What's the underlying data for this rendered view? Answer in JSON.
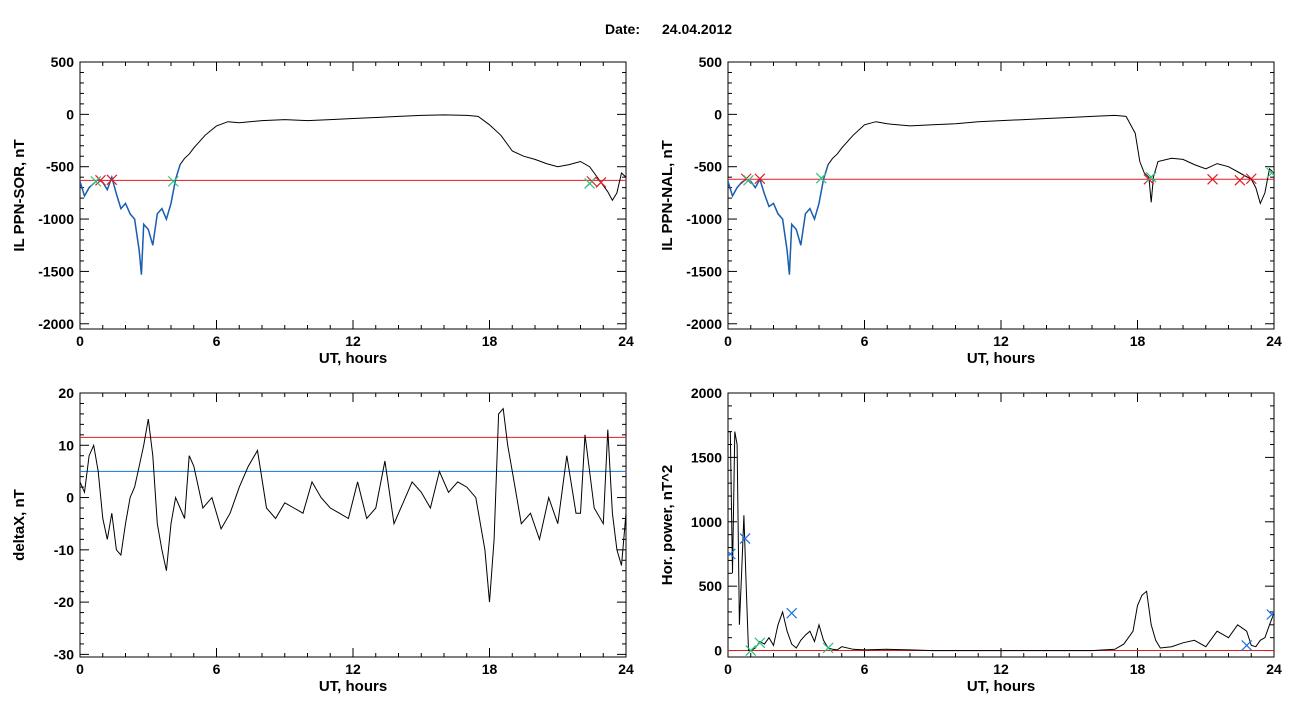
{
  "header": {
    "label": "Date:",
    "value": "24.04.2012"
  },
  "colors": {
    "trace": "#000000",
    "selection": "#1a5fb4",
    "threshold": "#e01b24",
    "blue_line": "#1c71d8",
    "green_mark": "#2ec27e"
  },
  "chart_data": [
    {
      "type": "line",
      "ylabel": "IL PPN-SOR, nT",
      "xlabel": "UT, hours",
      "xlim": [
        0,
        24
      ],
      "ylim": [
        -2050,
        500
      ],
      "xticks": [
        "0",
        "6",
        "12",
        "18",
        "24"
      ],
      "yticks": [
        "500",
        "0",
        "-500",
        "-1000",
        "-1500",
        "-2000"
      ],
      "x": [
        0,
        0.2,
        0.4,
        0.6,
        0.8,
        1.0,
        1.2,
        1.4,
        1.6,
        1.8,
        2.0,
        2.2,
        2.4,
        2.6,
        2.7,
        2.8,
        3.0,
        3.2,
        3.4,
        3.6,
        3.8,
        4.0,
        4.2,
        4.4,
        4.6,
        4.8,
        5.0,
        5.5,
        6.0,
        6.5,
        7.0,
        8.0,
        9.0,
        10.0,
        11.0,
        12.0,
        13.0,
        14.0,
        15.0,
        16.0,
        17.0,
        17.5,
        18.0,
        18.5,
        19.0,
        19.5,
        20.0,
        20.5,
        21.0,
        21.5,
        22.0,
        22.4,
        22.6,
        22.8,
        23.0,
        23.2,
        23.4,
        23.6,
        23.8,
        24.0
      ],
      "y": [
        -640,
        -780,
        -700,
        -660,
        -620,
        -650,
        -720,
        -600,
        -760,
        -900,
        -850,
        -950,
        -1000,
        -1300,
        -1530,
        -1050,
        -1100,
        -1250,
        -950,
        -900,
        -1000,
        -850,
        -620,
        -480,
        -420,
        -380,
        -320,
        -200,
        -110,
        -70,
        -80,
        -60,
        -50,
        -60,
        -50,
        -40,
        -30,
        -20,
        -10,
        -5,
        -10,
        -20,
        -100,
        -200,
        -350,
        -400,
        -430,
        -470,
        -500,
        -480,
        -450,
        -500,
        -560,
        -620,
        -680,
        -740,
        -820,
        -750,
        -560,
        -600
      ],
      "threshold": -630,
      "selection_range": [
        0,
        4.4
      ],
      "markers": [
        {
          "x": 0.9,
          "y": -630,
          "color": "red"
        },
        {
          "x": 1.4,
          "y": -625,
          "color": "red"
        },
        {
          "x": 0.7,
          "y": -640,
          "color": "green"
        },
        {
          "x": 4.1,
          "y": -640,
          "color": "green"
        },
        {
          "x": 22.5,
          "y": -640,
          "color": "red"
        },
        {
          "x": 22.9,
          "y": -650,
          "color": "red"
        },
        {
          "x": 22.4,
          "y": -660,
          "color": "green"
        }
      ]
    },
    {
      "type": "line",
      "ylabel": "IL PPN-NAL, nT",
      "xlabel": "UT, hours",
      "xlim": [
        0,
        24
      ],
      "ylim": [
        -2050,
        500
      ],
      "xticks": [
        "0",
        "6",
        "12",
        "18",
        "24"
      ],
      "yticks": [
        "500",
        "0",
        "-500",
        "-1000",
        "-1500",
        "-2000"
      ],
      "x": [
        0,
        0.2,
        0.4,
        0.6,
        0.8,
        1.0,
        1.2,
        1.4,
        1.6,
        1.8,
        2.0,
        2.2,
        2.4,
        2.6,
        2.7,
        2.8,
        3.0,
        3.2,
        3.4,
        3.6,
        3.8,
        4.0,
        4.2,
        4.4,
        4.6,
        4.8,
        5.0,
        5.5,
        6.0,
        6.5,
        7.0,
        8.0,
        9.0,
        10.0,
        11.0,
        12.0,
        13.0,
        14.0,
        15.0,
        16.0,
        17.0,
        17.5,
        17.9,
        18.1,
        18.3,
        18.5,
        18.6,
        18.7,
        18.9,
        19.5,
        20.0,
        20.5,
        21.0,
        21.5,
        22.0,
        22.5,
        23.0,
        23.2,
        23.4,
        23.6,
        23.8,
        24.0
      ],
      "y": [
        -640,
        -780,
        -700,
        -650,
        -620,
        -640,
        -700,
        -620,
        -760,
        -880,
        -850,
        -950,
        -1000,
        -1300,
        -1530,
        -1050,
        -1100,
        -1250,
        -950,
        -900,
        -1000,
        -850,
        -620,
        -480,
        -420,
        -380,
        -320,
        -200,
        -100,
        -70,
        -90,
        -110,
        -100,
        -90,
        -70,
        -60,
        -50,
        -40,
        -30,
        -20,
        -10,
        -20,
        -180,
        -450,
        -560,
        -600,
        -840,
        -600,
        -450,
        -420,
        -430,
        -480,
        -520,
        -470,
        -500,
        -560,
        -620,
        -700,
        -850,
        -750,
        -520,
        -560
      ],
      "threshold": -620,
      "selection_range": [
        0,
        4.4
      ],
      "markers": [
        {
          "x": 0.8,
          "y": -615,
          "color": "red"
        },
        {
          "x": 1.4,
          "y": -615,
          "color": "red"
        },
        {
          "x": 0.9,
          "y": -630,
          "color": "green"
        },
        {
          "x": 4.1,
          "y": -610,
          "color": "green"
        },
        {
          "x": 18.5,
          "y": -620,
          "color": "red"
        },
        {
          "x": 18.6,
          "y": -600,
          "color": "green"
        },
        {
          "x": 21.3,
          "y": -620,
          "color": "red"
        },
        {
          "x": 22.5,
          "y": -630,
          "color": "red"
        },
        {
          "x": 23.0,
          "y": -615,
          "color": "red"
        },
        {
          "x": 23.9,
          "y": -560,
          "color": "green"
        }
      ]
    },
    {
      "type": "line",
      "ylabel": "deltaX, nT",
      "xlabel": "UT, hours",
      "xlim": [
        0,
        24
      ],
      "ylim": [
        -30.5,
        20
      ],
      "xticks": [
        "0",
        "6",
        "12",
        "18",
        "24"
      ],
      "yticks": [
        "20",
        "10",
        "0",
        "-10",
        "-20",
        "-30"
      ],
      "x": [
        0,
        0.2,
        0.4,
        0.6,
        0.8,
        1.0,
        1.2,
        1.4,
        1.6,
        1.8,
        2.0,
        2.2,
        2.4,
        2.6,
        2.8,
        3.0,
        3.2,
        3.4,
        3.6,
        3.8,
        4.0,
        4.2,
        4.4,
        4.6,
        4.8,
        5.0,
        5.4,
        5.8,
        6.2,
        6.6,
        7.0,
        7.4,
        7.8,
        8.2,
        8.6,
        9.0,
        9.4,
        9.8,
        10.2,
        10.6,
        11.0,
        11.4,
        11.8,
        12.2,
        12.6,
        13.0,
        13.4,
        13.8,
        14.2,
        14.6,
        15.0,
        15.4,
        15.8,
        16.2,
        16.6,
        17.0,
        17.4,
        17.8,
        18.0,
        18.2,
        18.4,
        18.6,
        18.8,
        19.0,
        19.4,
        19.8,
        20.2,
        20.6,
        21.0,
        21.4,
        21.8,
        22.0,
        22.2,
        22.6,
        23.0,
        23.2,
        23.4,
        23.6,
        23.8,
        24.0
      ],
      "y": [
        3,
        1,
        8,
        10,
        5,
        -4,
        -8,
        -3,
        -10,
        -11,
        -5,
        0,
        2,
        6,
        10,
        15,
        8,
        -5,
        -10,
        -14,
        -5,
        0,
        -2,
        -4,
        8,
        6,
        -2,
        0,
        -6,
        -3,
        2,
        6,
        9,
        -2,
        -4,
        -1,
        -2,
        -3,
        3,
        0,
        -2,
        -3,
        -4,
        3,
        -4,
        -2,
        7,
        -5,
        -1,
        3,
        1,
        -2,
        5,
        1,
        3,
        2,
        0,
        -10,
        -20,
        -8,
        16,
        17,
        10,
        5,
        -5,
        -3,
        -8,
        0,
        -5,
        8,
        -3,
        -3,
        12,
        -2,
        -5,
        13,
        -3,
        -10,
        -13,
        -3
      ],
      "hlines": [
        {
          "value": 11.5,
          "color": "red"
        },
        {
          "value": 5,
          "color": "blue"
        }
      ]
    },
    {
      "type": "line",
      "ylabel": "Hor. power, nT^2",
      "xlabel": "UT, hours",
      "xlim": [
        0,
        24
      ],
      "ylim": [
        -50,
        2000
      ],
      "xticks": [
        "0",
        "6",
        "12",
        "18",
        "24"
      ],
      "yticks": [
        "2000",
        "1500",
        "1000",
        "500",
        "0"
      ],
      "x": [
        0,
        0.1,
        0.2,
        0.3,
        0.4,
        0.5,
        0.6,
        0.7,
        0.8,
        0.9,
        1.0,
        1.2,
        1.4,
        1.6,
        1.8,
        2.0,
        2.2,
        2.4,
        2.6,
        2.8,
        3.0,
        3.2,
        3.4,
        3.6,
        3.8,
        4.0,
        4.2,
        4.4,
        4.6,
        4.8,
        5.0,
        5.5,
        6.0,
        7.0,
        8.0,
        9.0,
        10.0,
        11.0,
        12.0,
        13.0,
        14.0,
        15.0,
        16.0,
        17.0,
        17.4,
        17.8,
        18.0,
        18.2,
        18.4,
        18.6,
        18.8,
        19.0,
        19.5,
        20.0,
        20.5,
        21.0,
        21.5,
        22.0,
        22.4,
        22.8,
        23.0,
        23.2,
        23.4,
        23.6,
        23.8,
        24.0
      ],
      "y": [
        1700,
        1700,
        600,
        1700,
        1600,
        200,
        600,
        1050,
        500,
        0,
        0,
        20,
        70,
        50,
        100,
        40,
        200,
        300,
        150,
        50,
        20,
        80,
        120,
        150,
        70,
        200,
        80,
        20,
        10,
        5,
        30,
        10,
        5,
        10,
        5,
        0,
        0,
        0,
        0,
        0,
        0,
        0,
        0,
        10,
        50,
        150,
        350,
        430,
        460,
        200,
        80,
        20,
        30,
        60,
        80,
        30,
        150,
        100,
        200,
        150,
        40,
        30,
        80,
        100,
        200,
        290
      ],
      "threshold": 0,
      "markers": [
        {
          "x": 0.1,
          "y": 750,
          "color": "blue"
        },
        {
          "x": 0.75,
          "y": 870,
          "color": "blue"
        },
        {
          "x": 1.0,
          "y": 0,
          "color": "green"
        },
        {
          "x": 1.4,
          "y": 60,
          "color": "green"
        },
        {
          "x": 2.8,
          "y": 290,
          "color": "blue"
        },
        {
          "x": 4.4,
          "y": 20,
          "color": "green"
        },
        {
          "x": 22.8,
          "y": 40,
          "color": "blue"
        },
        {
          "x": 23.9,
          "y": 280,
          "color": "blue"
        }
      ]
    }
  ]
}
